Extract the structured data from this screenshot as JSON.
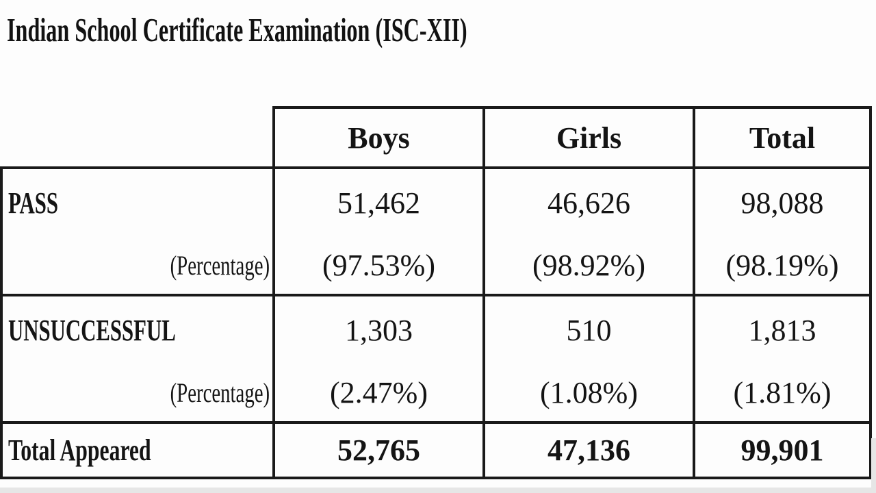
{
  "page": {
    "title": "Indian School Certificate Examination (ISC-XII)"
  },
  "table": {
    "columns": [
      "Boys",
      "Girls",
      "Total"
    ],
    "rows": [
      {
        "label": "PASS",
        "sublabel": "(Percentage)",
        "values": [
          "51,462",
          "46,626",
          "98,088"
        ],
        "percentages": [
          "(97.53%)",
          "(98.92%)",
          "(98.19%)"
        ]
      },
      {
        "label": "UNSUCCESSFUL",
        "sublabel": "(Percentage)",
        "values": [
          "1,303",
          "510",
          "1,813"
        ],
        "percentages": [
          "(2.47%)",
          "(1.08%)",
          "(1.81%)"
        ]
      },
      {
        "label": "Total Appeared",
        "values": [
          "52,765",
          "47,136",
          "99,901"
        ]
      }
    ]
  },
  "colors": {
    "text": "#141414",
    "border": "#1a1a1a",
    "background": "#fdfdfd",
    "edge_strip": "#e6e6e6"
  }
}
